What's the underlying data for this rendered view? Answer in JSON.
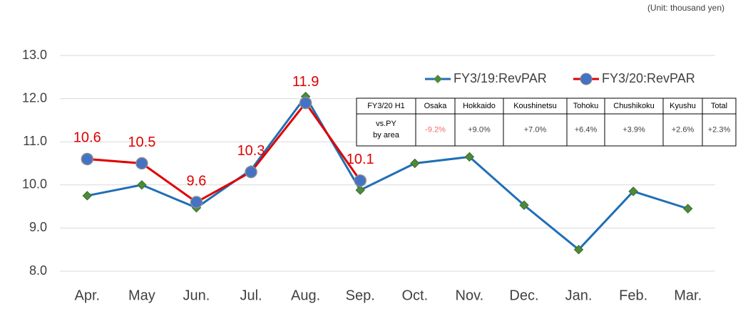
{
  "chart_data": {
    "type": "line",
    "unit_note": "(Unit: thousand yen)",
    "categories": [
      "Apr.",
      "May",
      "Jun.",
      "Jul.",
      "Aug.",
      "Sep.",
      "Oct.",
      "Nov.",
      "Dec.",
      "Jan.",
      "Feb.",
      "Mar."
    ],
    "series": [
      {
        "name": "FY3/19:RevPAR",
        "color": "#1f6fb5",
        "marker": "diamond",
        "marker_color": "#4e8a3a",
        "values": [
          9.75,
          10.0,
          9.47,
          10.35,
          12.05,
          9.88,
          10.5,
          10.65,
          9.53,
          8.5,
          9.85,
          9.45
        ]
      },
      {
        "name": "FY3/20:RevPAR",
        "color": "#e00000",
        "marker": "circle",
        "marker_color": "#4472c4",
        "data_labels": true,
        "values": [
          10.6,
          10.5,
          9.6,
          10.3,
          11.9,
          10.1,
          null,
          null,
          null,
          null,
          null,
          null
        ]
      }
    ],
    "ylim": [
      8,
      13
    ],
    "yticks": [
      {
        "value": 8,
        "label": "8.0"
      },
      {
        "value": 9,
        "label": "9.0"
      },
      {
        "value": 10,
        "label": "10.0"
      },
      {
        "value": 11,
        "label": "11.0"
      },
      {
        "value": 12,
        "label": "12.0"
      },
      {
        "value": 13,
        "label": "13.0"
      }
    ],
    "grid": true,
    "table": {
      "header": [
        "FY3/20 H1",
        "Osaka",
        "Hokkaido",
        "Koushinetsu",
        "Tohoku",
        "Chushikoku",
        "Kyushu",
        "Total"
      ],
      "row_label": [
        "vs.PY",
        "by area"
      ],
      "row": [
        "-9.2%",
        "+9.0%",
        "+7.0%",
        "+6.4%",
        "+3.9%",
        "+2.6%",
        "+2.3%"
      ]
    }
  }
}
